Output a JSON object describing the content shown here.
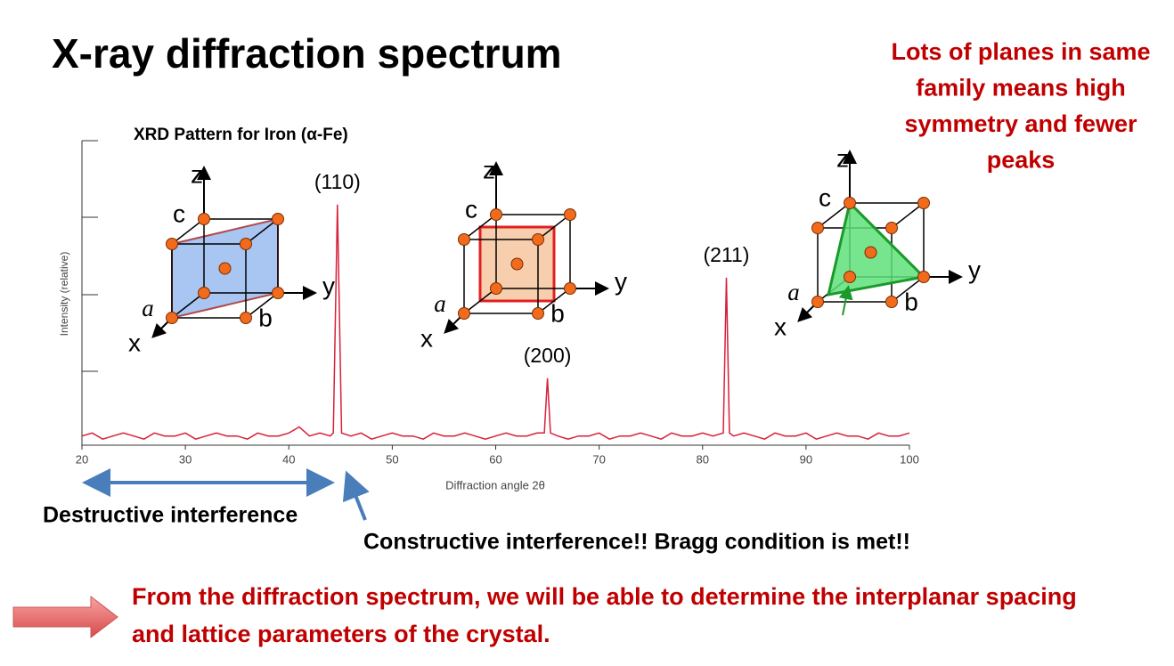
{
  "slide_title": "X-ray diffraction spectrum",
  "note_lines": [
    "Lots of planes in same",
    "family means high",
    "symmetry and fewer",
    "peaks"
  ],
  "chart_data": {
    "type": "line",
    "title": "XRD Pattern for Iron (α-Fe)",
    "x_label": "Diffraction angle 2θ",
    "y_label": "Intensity (relative)",
    "xlim": [
      20,
      100
    ],
    "xticks": [
      20,
      30,
      40,
      50,
      60,
      70,
      80,
      90,
      100
    ],
    "ylim": [
      0,
      100
    ],
    "series": [
      {
        "name": "α-Fe",
        "color": "#d6213a",
        "x": [
          20,
          21,
          22,
          23,
          24,
          25,
          26,
          27,
          28,
          29,
          30,
          31,
          32,
          33,
          34,
          35,
          36,
          37,
          38,
          39,
          40,
          41,
          42,
          43,
          44,
          44.3,
          44.7,
          45.1,
          46,
          47,
          48,
          49,
          50,
          51,
          52,
          53,
          54,
          55,
          56,
          57,
          58,
          59,
          60,
          61,
          62,
          63,
          64,
          64.7,
          65,
          65.3,
          66,
          67,
          68,
          69,
          70,
          71,
          72,
          73,
          74,
          75,
          76,
          77,
          78,
          79,
          80,
          81,
          82,
          82.3,
          82.6,
          83,
          84,
          85,
          86,
          87,
          88,
          89,
          90,
          91,
          92,
          93,
          94,
          95,
          96,
          97,
          98,
          99,
          100
        ],
        "values": [
          3,
          4,
          2,
          3,
          4,
          3,
          2,
          4,
          3,
          3,
          4,
          2,
          3,
          4,
          3,
          3,
          2,
          4,
          3,
          3,
          4,
          6,
          3,
          4,
          3,
          4,
          79,
          4,
          3,
          4,
          2,
          3,
          4,
          3,
          3,
          2,
          4,
          3,
          3,
          4,
          3,
          2,
          3,
          4,
          3,
          3,
          4,
          4,
          22,
          4,
          3,
          2,
          3,
          3,
          4,
          2,
          3,
          3,
          4,
          3,
          2,
          4,
          3,
          3,
          4,
          3,
          4,
          55,
          4,
          3,
          4,
          3,
          2,
          4,
          3,
          3,
          4,
          2,
          3,
          4,
          3,
          3,
          2,
          4,
          3,
          3,
          4
        ]
      }
    ],
    "annotations": [
      {
        "text": "(110)",
        "x": 44.7,
        "y": 79
      },
      {
        "text": "(200)",
        "x": 65,
        "y": 22
      },
      {
        "text": "(211)",
        "x": 82.3,
        "y": 55
      }
    ]
  },
  "diagrams": [
    {
      "z": "z",
      "c": "c",
      "a": "a",
      "b": "b",
      "x": "x",
      "y": "y"
    },
    {
      "z": "z",
      "c": "c",
      "a": "a",
      "b": "b",
      "x": "x",
      "y": "y"
    },
    {
      "z": "z",
      "c": "c",
      "a": "a",
      "b": "b",
      "x": "x",
      "y": "y"
    }
  ],
  "destructive": "Destructive interference",
  "constructive": "Constructive interference!! Bragg condition is met!!",
  "conclusion_lines": [
    "From the diffraction spectrum, we will be able to determine the interplanar spacing",
    "and lattice parameters of the crystal."
  ]
}
